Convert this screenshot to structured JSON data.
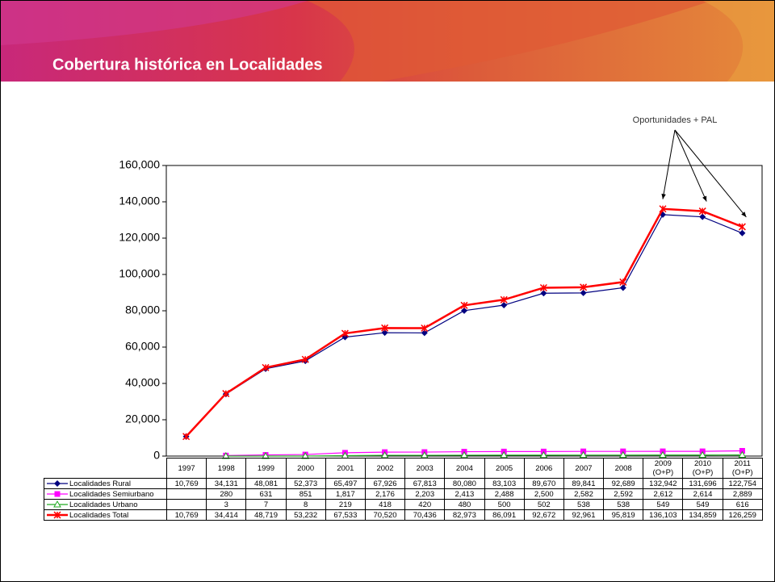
{
  "header": {
    "title": "Cobertura histórica en Localidades"
  },
  "chart_data": {
    "type": "line",
    "annotation": "Oportunidades + PAL",
    "categories": [
      "1997",
      "1998",
      "1999",
      "2000",
      "2001",
      "2002",
      "2003",
      "2004",
      "2005",
      "2006",
      "2007",
      "2008",
      "2009 (O+P)",
      "2010 (O+P)",
      "2011 (O+P)"
    ],
    "ylim": [
      0,
      160000
    ],
    "yticks": [
      0,
      {
        "value": 20000,
        "label": "20,000"
      },
      {
        "value": 40000,
        "label": "40,000"
      },
      {
        "value": 60000,
        "label": "60,000"
      },
      {
        "value": 80000,
        "label": "80,000"
      },
      {
        "value": 100000,
        "label": "100,000"
      },
      {
        "value": 120000,
        "label": "120,000"
      },
      {
        "value": 140000,
        "label": "140,000"
      },
      {
        "value": 160000,
        "label": "160,000"
      }
    ],
    "grid": false,
    "series": [
      {
        "name": "Localidades Rural",
        "color": "#000080",
        "marker": "diamond",
        "values": [
          10769,
          34131,
          48081,
          52373,
          65497,
          67926,
          67813,
          80080,
          83103,
          89670,
          89841,
          92689,
          132942,
          131696,
          122754
        ],
        "value_labels": [
          "10,769",
          "34,131",
          "48,081",
          "52,373",
          "65,497",
          "67,926",
          "67,813",
          "80,080",
          "83,103",
          "89,670",
          "89,841",
          "92,689",
          "132,942",
          "131,696",
          "122,754"
        ]
      },
      {
        "name": "Localidades Semiurbano",
        "color": "#ff00ff",
        "marker": "square",
        "values": [
          null,
          280,
          631,
          851,
          1817,
          2176,
          2203,
          2413,
          2488,
          2500,
          2582,
          2592,
          2612,
          2614,
          2889
        ],
        "value_labels": [
          null,
          "280",
          "631",
          "851",
          "1,817",
          "2,176",
          "2,203",
          "2,413",
          "2,488",
          "2,500",
          "2,582",
          "2,592",
          "2,612",
          "2,614",
          "2,889"
        ]
      },
      {
        "name": "Localidades Urbano",
        "color": "#22aa22",
        "marker": "triangle",
        "values": [
          null,
          3,
          7,
          8,
          219,
          418,
          420,
          480,
          500,
          502,
          538,
          538,
          549,
          549,
          616
        ],
        "value_labels": [
          null,
          "3",
          "7",
          "8",
          "219",
          "418",
          "420",
          "480",
          "500",
          "502",
          "538",
          "538",
          "549",
          "549",
          "616"
        ]
      },
      {
        "name": "Localidades Total",
        "color": "#ff0000",
        "marker": "cross",
        "values": [
          10769,
          34414,
          48719,
          53232,
          67533,
          70520,
          70436,
          82973,
          86091,
          92672,
          92961,
          95819,
          136103,
          134859,
          126259
        ],
        "value_labels": [
          "10,769",
          "34,414",
          "48,719",
          "53,232",
          "67,533",
          "70,520",
          "70,436",
          "82,973",
          "86,091",
          "92,672",
          "92,961",
          "95,819",
          "136,103",
          "134,859",
          "126,259"
        ]
      }
    ]
  }
}
